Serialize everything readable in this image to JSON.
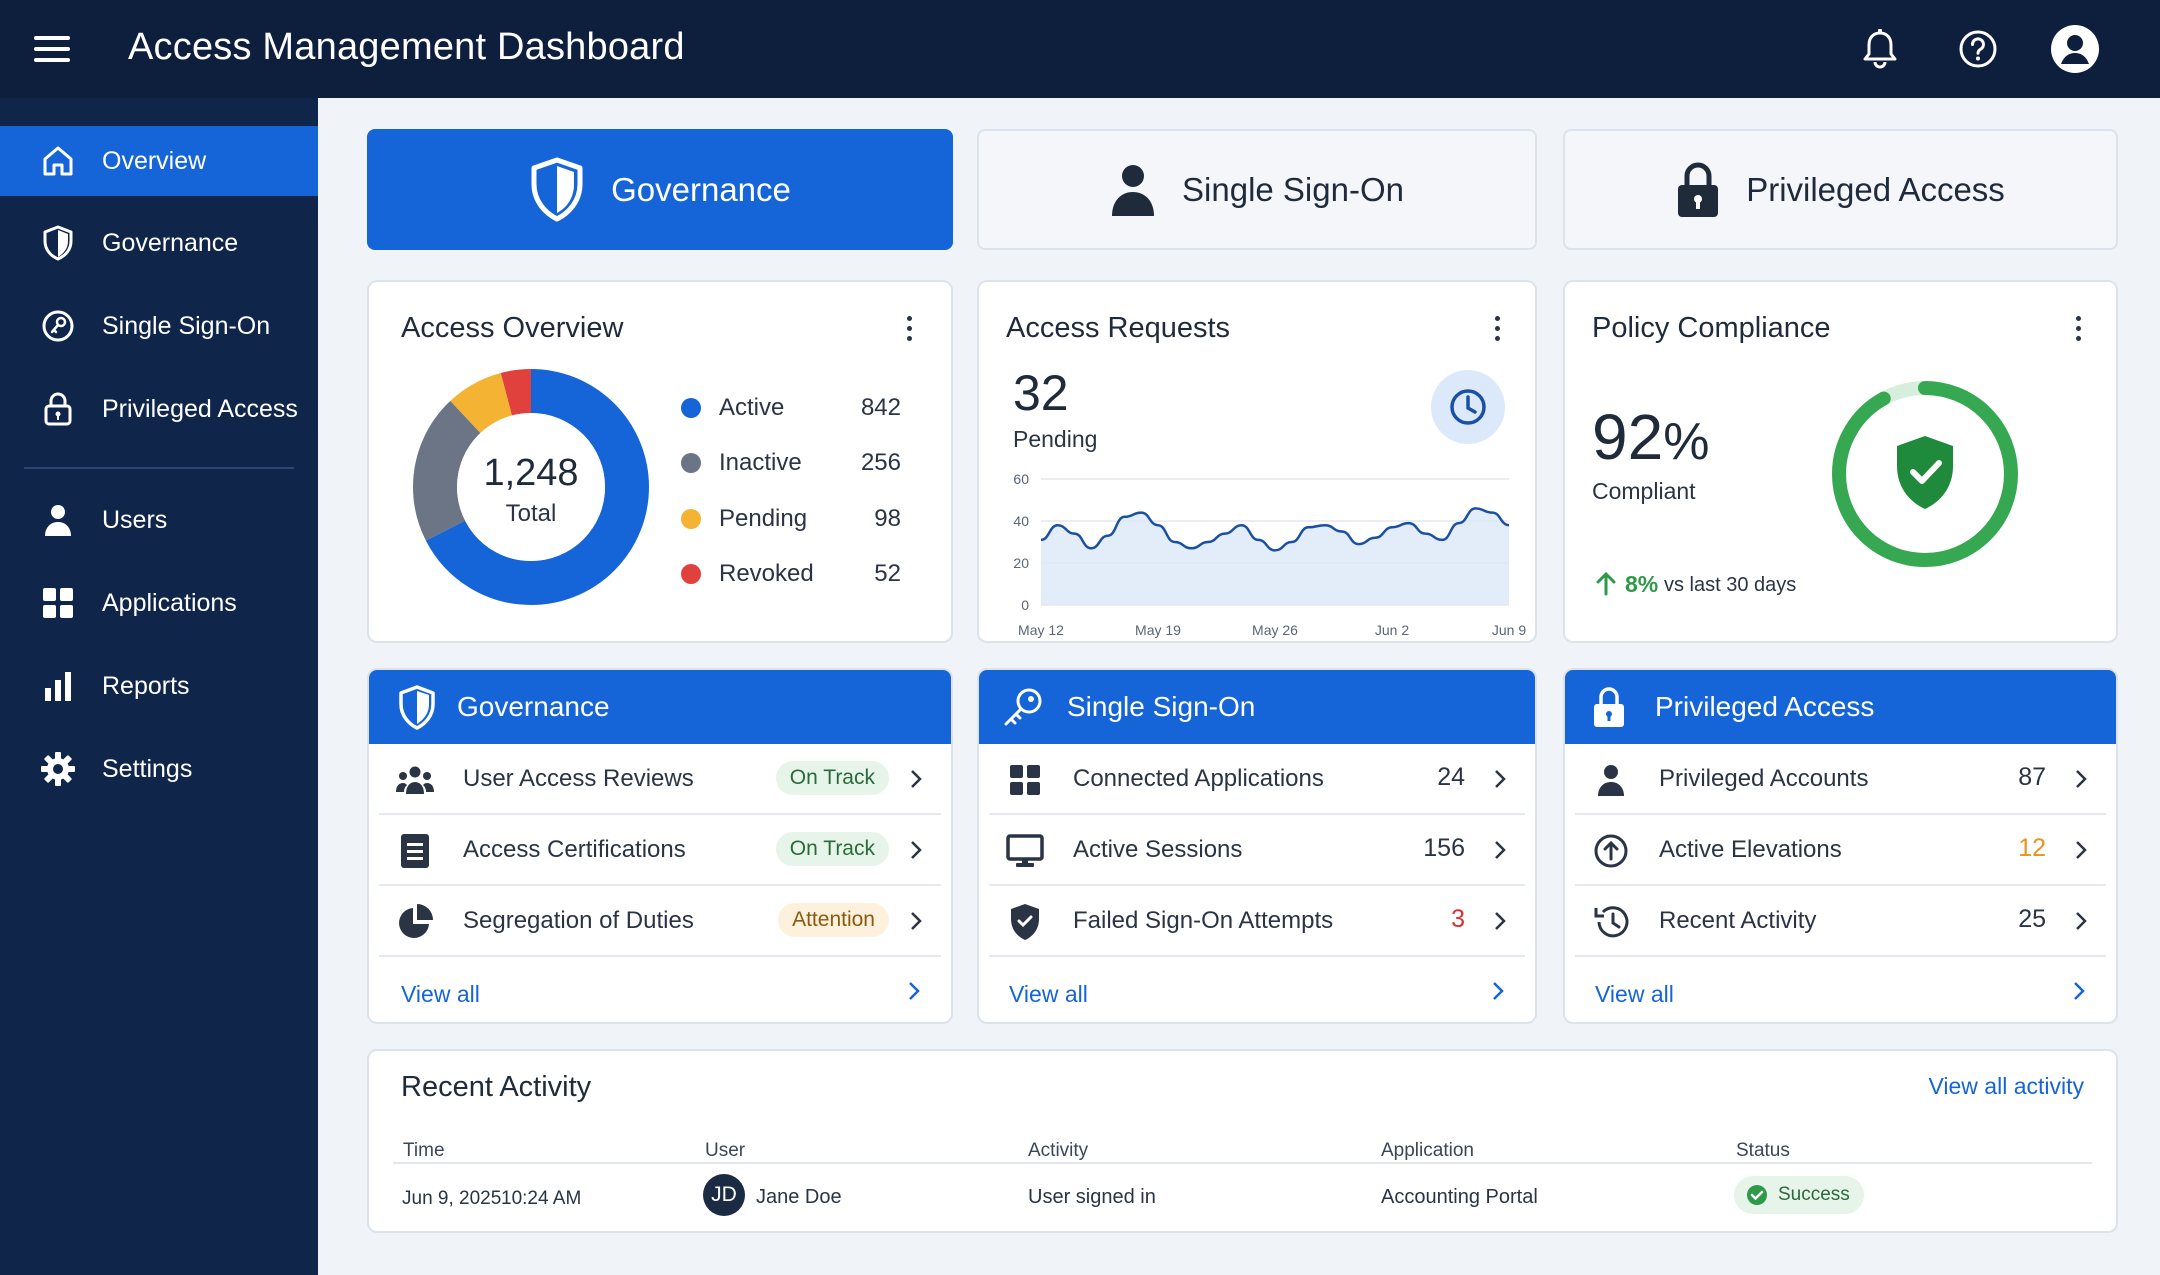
{
  "app": {
    "title": "Access Management Dashboard"
  },
  "topbar": {
    "icons": [
      "menu-icon",
      "bell-icon",
      "help-icon",
      "user-avatar-icon"
    ]
  },
  "sidebar": {
    "items": [
      {
        "label": "Overview",
        "icon": "home-icon",
        "active": true
      },
      {
        "label": "Governance",
        "icon": "shield-icon"
      },
      {
        "label": "Single Sign-On",
        "icon": "key-icon"
      },
      {
        "label": "Privileged Access",
        "icon": "lock-icon"
      },
      {
        "label": "Users",
        "icon": "person-icon"
      },
      {
        "label": "Applications",
        "icon": "grid-icon"
      },
      {
        "label": "Reports",
        "icon": "bar-chart-icon"
      },
      {
        "label": "Settings",
        "icon": "gear-icon"
      }
    ]
  },
  "tabs": [
    {
      "label": "Governance",
      "icon": "shield-icon",
      "active": true
    },
    {
      "label": "Single Sign-On",
      "icon": "person-icon"
    },
    {
      "label": "Privileged Access",
      "icon": "lock-icon"
    }
  ],
  "access_overview": {
    "title": "Access Overview",
    "total_value": "1,248",
    "total_label": "Total",
    "legend": [
      {
        "name": "Active",
        "value": "842",
        "color": "#1565d8"
      },
      {
        "name": "Inactive",
        "value": "256",
        "color": "#6b7585"
      },
      {
        "name": "Pending",
        "value": "98",
        "color": "#f5b334"
      },
      {
        "name": "Revoked",
        "value": "52",
        "color": "#e0413c"
      }
    ]
  },
  "access_requests": {
    "title": "Access Requests",
    "value": "32",
    "label": "Pending"
  },
  "policy_compliance": {
    "title": "Policy Compliance",
    "value": "92",
    "unit": "%",
    "label": "Compliant",
    "trend_value": "8%",
    "trend_label": "vs last 30 days",
    "fraction": 0.92
  },
  "chart_data": {
    "type": "area",
    "x": [
      "May 12",
      "May 13",
      "May 14",
      "May 15",
      "May 16",
      "May 17",
      "May 18",
      "May 19",
      "May 20",
      "May 21",
      "May 22",
      "May 23",
      "May 24",
      "May 25",
      "May 26",
      "May 27",
      "May 28",
      "May 29",
      "May 30",
      "May 31",
      "Jun 1",
      "Jun 2",
      "Jun 3",
      "Jun 4",
      "Jun 5",
      "Jun 6",
      "Jun 7",
      "Jun 8",
      "Jun 9"
    ],
    "values": [
      31,
      38,
      34,
      27,
      33,
      42,
      44,
      38,
      30,
      27,
      30,
      34,
      38,
      31,
      26,
      30,
      37,
      38,
      35,
      29,
      32,
      37,
      39,
      34,
      31,
      39,
      46,
      44,
      38
    ],
    "x_tick_labels": [
      "May 12",
      "May 19",
      "May 26",
      "Jun 2",
      "Jun 9"
    ],
    "y_ticks": [
      "0",
      "20",
      "40",
      "60"
    ],
    "ylim": [
      0,
      60
    ],
    "color": "#1a4fa3",
    "fill": "#dbe8f8",
    "grid": true
  },
  "governance_section": {
    "title": "Governance",
    "rows": [
      {
        "label": "User Access Reviews",
        "status": "On Track",
        "status_type": "ok"
      },
      {
        "label": "Access Certifications",
        "status": "On Track",
        "status_type": "ok"
      },
      {
        "label": "Segregation of Duties",
        "status": "Attention",
        "status_type": "warn"
      }
    ],
    "view_all": "View all"
  },
  "sso_section": {
    "title": "Single Sign-On",
    "rows": [
      {
        "label": "Connected Applications",
        "value": "24",
        "color": "#2a3444"
      },
      {
        "label": "Active Sessions",
        "value": "156",
        "color": "#2a3444"
      },
      {
        "label": "Failed Sign-On Attempts",
        "value": "3",
        "color": "#d93030"
      }
    ],
    "view_all": "View all"
  },
  "pam_section": {
    "title": "Privileged Access",
    "rows": [
      {
        "label": "Privileged Accounts",
        "value": "87",
        "color": "#2a3444"
      },
      {
        "label": "Active Elevations",
        "value": "12",
        "color": "#e8941a"
      },
      {
        "label": "Recent Activity",
        "value": "25",
        "color": "#2a3444"
      }
    ],
    "view_all": "View all"
  },
  "recent_activity": {
    "title": "Recent Activity",
    "view_all": "View all activity",
    "columns": [
      "Time",
      "User",
      "Activity",
      "Application",
      "Status"
    ],
    "rows": [
      {
        "date": "Jun 9, 2025",
        "time": "10:24 AM",
        "initials": "JD",
        "user": "Jane Doe",
        "activity": "User signed in",
        "application": "Accounting Portal",
        "status": "Success"
      }
    ]
  }
}
